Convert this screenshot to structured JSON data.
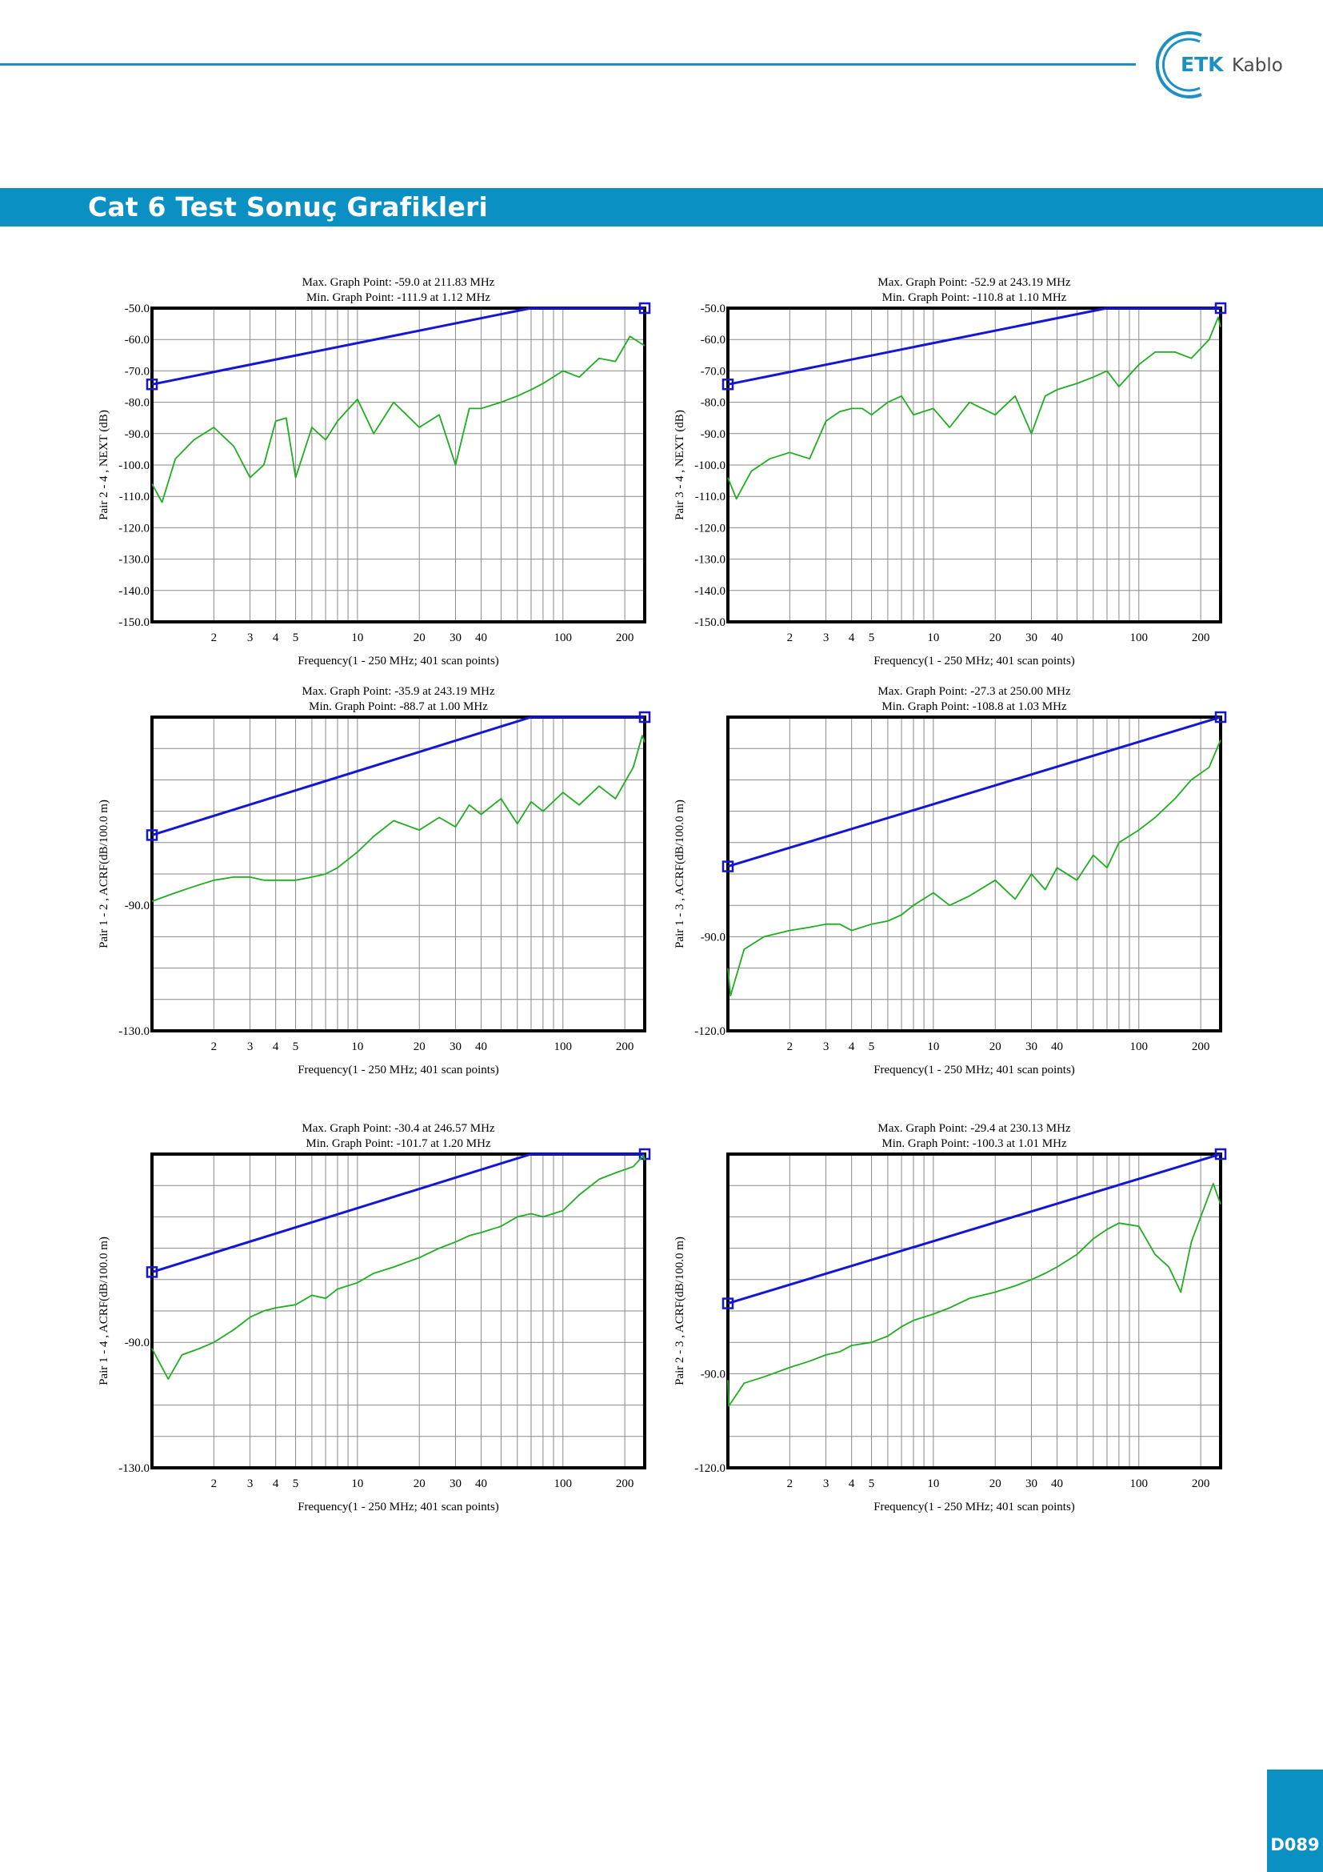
{
  "header": {
    "brand_short": "ETK",
    "brand_rest": "Kablo",
    "brand_color": "#1c8fc4"
  },
  "banner": {
    "title": "Cat 6 Test Sonuç Grafikleri"
  },
  "footer": {
    "page_number": "D089"
  },
  "colors": {
    "limit": "#1515d6",
    "measured": "#1fae1f",
    "accent": "#0a90c3"
  },
  "chart_data": [
    {
      "type": "line",
      "max_text": "Max. Graph Point: -59.0 at 211.83 MHz",
      "min_text": "Min. Graph Point: -111.9 at 1.12 MHz",
      "ylabel": "Pair 2 - 4 , NEXT (dB)",
      "xlabel": "Frequency(1 - 250 MHz; 401 scan points)",
      "x_scale": "log",
      "xlim": [
        1,
        250
      ],
      "ylim": [
        -150,
        -50
      ],
      "y_ticks": [
        -50,
        -60,
        -70,
        -80,
        -90,
        -100,
        -110,
        -120,
        -130,
        -140,
        -150
      ],
      "y_tick_labels": [
        "-50.0",
        "-60.0",
        "-70.0",
        "-80.0",
        "-90.0",
        "-100.0",
        "-110.0",
        "-120.0",
        "-130.0",
        "-140.0",
        "-150.0"
      ],
      "x_tick_labels": [
        "2",
        "3",
        "4",
        "5",
        "10",
        "20",
        "30",
        "40",
        "100",
        "200"
      ],
      "grid": true,
      "series": [
        {
          "role": "limit",
          "x": [
            1,
            70,
            250
          ],
          "y": [
            -74.3,
            -50,
            -50
          ]
        },
        {
          "role": "measured",
          "x": [
            1,
            1.12,
            1.3,
            1.6,
            2.0,
            2.5,
            3.0,
            3.5,
            4.0,
            4.5,
            5.0,
            6,
            7,
            8,
            10,
            12,
            15,
            20,
            25,
            30,
            35,
            40,
            50,
            60,
            70,
            80,
            100,
            120,
            150,
            180,
            211.83,
            250
          ],
          "y": [
            -106,
            -111.9,
            -98,
            -92,
            -88,
            -94,
            -104,
            -100,
            -86,
            -85,
            -104,
            -88,
            -92,
            -86,
            -79,
            -90,
            -80,
            -88,
            -84,
            -100,
            -82,
            -82,
            -80,
            -78,
            -76,
            -74,
            -70,
            -72,
            -66,
            -67,
            -59.0,
            -62
          ]
        }
      ]
    },
    {
      "type": "line",
      "max_text": "Max. Graph Point: -52.9 at 243.19 MHz",
      "min_text": "Min. Graph Point: -110.8 at 1.10 MHz",
      "ylabel": "Pair 3 - 4 , NEXT (dB)",
      "xlabel": "Frequency(1 - 250 MHz; 401 scan points)",
      "x_scale": "log",
      "xlim": [
        1,
        250
      ],
      "ylim": [
        -150,
        -50
      ],
      "y_ticks": [
        -50,
        -60,
        -70,
        -80,
        -90,
        -100,
        -110,
        -120,
        -130,
        -140,
        -150
      ],
      "y_tick_labels": [
        "-50.0",
        "-60.0",
        "-70.0",
        "-80.0",
        "-90.0",
        "-100.0",
        "-110.0",
        "-120.0",
        "-130.0",
        "-140.0",
        "-150.0"
      ],
      "x_tick_labels": [
        "2",
        "3",
        "4",
        "5",
        "10",
        "20",
        "30",
        "40",
        "100",
        "200"
      ],
      "grid": true,
      "series": [
        {
          "role": "limit",
          "x": [
            1,
            70,
            250
          ],
          "y": [
            -74.3,
            -50,
            -50
          ]
        },
        {
          "role": "measured",
          "x": [
            1,
            1.1,
            1.3,
            1.6,
            2.0,
            2.5,
            3.0,
            3.5,
            4.0,
            4.5,
            5.0,
            6,
            7,
            8,
            10,
            12,
            15,
            20,
            25,
            30,
            35,
            40,
            50,
            60,
            70,
            80,
            100,
            120,
            150,
            180,
            220,
            243.19,
            250
          ],
          "y": [
            -104,
            -110.8,
            -102,
            -98,
            -96,
            -98,
            -86,
            -83,
            -82,
            -82,
            -84,
            -80,
            -78,
            -84,
            -82,
            -88,
            -80,
            -84,
            -78,
            -90,
            -78,
            -76,
            -74,
            -72,
            -70,
            -75,
            -68,
            -64,
            -64,
            -66,
            -60,
            -52.9,
            -56
          ]
        }
      ]
    },
    {
      "type": "line",
      "max_text": "Max. Graph Point: -35.9 at 243.19 MHz",
      "min_text": "Min. Graph Point: -88.7 at 1.00 MHz",
      "ylabel": "Pair 1 - 2 , ACRF(dB/100.0 m)",
      "xlabel": "Frequency(1 - 250 MHz; 401 scan points)",
      "x_scale": "log",
      "xlim": [
        1,
        250
      ],
      "ylim": [
        -130,
        -30
      ],
      "y_ticks": [
        -90,
        -130
      ],
      "y_tick_labels": [
        "-90.0",
        "-130.0"
      ],
      "x_tick_labels": [
        "2",
        "3",
        "4",
        "5",
        "10",
        "20",
        "30",
        "40",
        "100",
        "200"
      ],
      "grid": true,
      "series": [
        {
          "role": "limit",
          "x": [
            1,
            70,
            250
          ],
          "y": [
            -67.6,
            -30,
            -30
          ]
        },
        {
          "role": "measured",
          "x": [
            1,
            1.3,
            1.6,
            2.0,
            2.5,
            3.0,
            3.5,
            4.0,
            5.0,
            6,
            7,
            8,
            10,
            12,
            15,
            20,
            25,
            30,
            35,
            40,
            50,
            60,
            70,
            80,
            100,
            120,
            150,
            180,
            220,
            243.19,
            250
          ],
          "y": [
            -88.7,
            -86,
            -84,
            -82,
            -81,
            -81,
            -82,
            -82,
            -82,
            -81,
            -80,
            -78,
            -73,
            -68,
            -63,
            -66,
            -62,
            -65,
            -58,
            -61,
            -56,
            -64,
            -57,
            -60,
            -54,
            -58,
            -52,
            -56,
            -46,
            -35.9,
            -38
          ]
        }
      ]
    },
    {
      "type": "line",
      "max_text": "Max. Graph Point: -27.3 at 250.00 MHz",
      "min_text": "Min. Graph Point: -108.8 at 1.03 MHz",
      "ylabel": "Pair 1 - 3 , ACRF(dB/100.0 m)",
      "xlabel": "Frequency(1 - 250 MHz; 401 scan points)",
      "x_scale": "log",
      "xlim": [
        1,
        250
      ],
      "ylim": [
        -120,
        -20
      ],
      "y_ticks": [
        -90,
        -120
      ],
      "y_tick_labels": [
        "-90.0",
        "-120.0"
      ],
      "x_tick_labels": [
        "2",
        "3",
        "4",
        "5",
        "10",
        "20",
        "30",
        "40",
        "100",
        "200"
      ],
      "grid": true,
      "series": [
        {
          "role": "limit",
          "x": [
            1,
            250
          ],
          "y": [
            -67.6,
            -20
          ]
        },
        {
          "role": "measured",
          "x": [
            1,
            1.03,
            1.2,
            1.5,
            2.0,
            2.5,
            3.0,
            3.5,
            4.0,
            5.0,
            6,
            7,
            8,
            10,
            12,
            15,
            20,
            25,
            30,
            35,
            40,
            50,
            60,
            70,
            80,
            100,
            120,
            150,
            180,
            220,
            250
          ],
          "y": [
            -100,
            -108.8,
            -94,
            -90,
            -88,
            -87,
            -86,
            -86,
            -88,
            -86,
            -85,
            -83,
            -80,
            -76,
            -80,
            -77,
            -72,
            -78,
            -70,
            -75,
            -68,
            -72,
            -64,
            -68,
            -60,
            -56,
            -52,
            -46,
            -40,
            -36,
            -27.3
          ]
        }
      ]
    },
    {
      "type": "line",
      "max_text": "Max. Graph Point: -30.4 at 246.57 MHz",
      "min_text": "Min. Graph Point: -101.7 at 1.20 MHz",
      "ylabel": "Pair 1 - 4 , ACRF(dB/100.0 m)",
      "xlabel": "Frequency(1 - 250 MHz; 401 scan points)",
      "x_scale": "log",
      "xlim": [
        1,
        250
      ],
      "ylim": [
        -130,
        -30
      ],
      "y_ticks": [
        -90,
        -130
      ],
      "y_tick_labels": [
        "-90.0",
        "-130.0"
      ],
      "x_tick_labels": [
        "2",
        "3",
        "4",
        "5",
        "10",
        "20",
        "30",
        "40",
        "100",
        "200"
      ],
      "grid": true,
      "series": [
        {
          "role": "limit",
          "x": [
            1,
            70,
            250
          ],
          "y": [
            -67.6,
            -30,
            -30
          ]
        },
        {
          "role": "measured",
          "x": [
            1,
            1.2,
            1.4,
            1.7,
            2.0,
            2.5,
            3.0,
            3.5,
            4.0,
            5.0,
            6,
            7,
            8,
            10,
            12,
            15,
            20,
            25,
            30,
            35,
            40,
            50,
            60,
            70,
            80,
            100,
            120,
            150,
            180,
            220,
            246.57,
            250
          ],
          "y": [
            -92,
            -101.7,
            -94,
            -92,
            -90,
            -86,
            -82,
            -80,
            -79,
            -78,
            -75,
            -76,
            -73,
            -71,
            -68,
            -66,
            -63,
            -60,
            -58,
            -56,
            -55,
            -53,
            -50,
            -49,
            -50,
            -48,
            -43,
            -38,
            -36,
            -34,
            -30.4,
            -32
          ]
        }
      ]
    },
    {
      "type": "line",
      "max_text": "Max. Graph Point: -29.4 at 230.13 MHz",
      "min_text": "Min. Graph Point: -100.3 at 1.01 MHz",
      "ylabel": "Pair 2 - 3 , ACRF(dB/100.0 m)",
      "xlabel": "Frequency(1 - 250 MHz; 401 scan points)",
      "x_scale": "log",
      "xlim": [
        1,
        250
      ],
      "ylim": [
        -120,
        -20
      ],
      "y_ticks": [
        -90,
        -120
      ],
      "y_tick_labels": [
        "-90.0",
        "-120.0"
      ],
      "x_tick_labels": [
        "2",
        "3",
        "4",
        "5",
        "10",
        "20",
        "30",
        "40",
        "100",
        "200"
      ],
      "grid": true,
      "series": [
        {
          "role": "limit",
          "x": [
            1,
            250
          ],
          "y": [
            -67.6,
            -20
          ]
        },
        {
          "role": "measured",
          "x": [
            1,
            1.01,
            1.2,
            1.5,
            2.0,
            2.5,
            3.0,
            3.5,
            4.0,
            5.0,
            6,
            7,
            8,
            10,
            12,
            15,
            20,
            25,
            30,
            35,
            40,
            50,
            60,
            70,
            80,
            100,
            120,
            140,
            160,
            180,
            200,
            230.13,
            250
          ],
          "y": [
            -92,
            -100.3,
            -93,
            -91,
            -88,
            -86,
            -84,
            -83,
            -81,
            -80,
            -78,
            -75,
            -73,
            -71,
            -69,
            -66,
            -64,
            -62,
            -60,
            -58,
            -56,
            -52,
            -47,
            -44,
            -42,
            -43,
            -52,
            -56,
            -64,
            -48,
            -40,
            -29.4,
            -36
          ]
        }
      ]
    }
  ]
}
